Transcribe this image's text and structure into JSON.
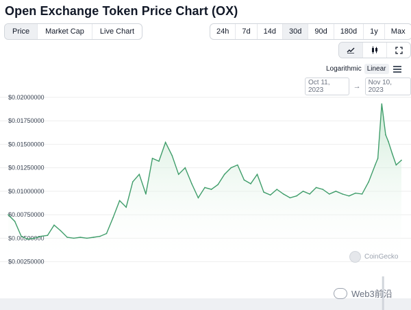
{
  "title": "Open Exchange Token Price Chart (OX)",
  "metric_tabs": [
    "Price",
    "Market Cap",
    "Live Chart"
  ],
  "active_metric": "Price",
  "range_tabs": [
    "24h",
    "7d",
    "14d",
    "30d",
    "90d",
    "180d",
    "1y",
    "Max"
  ],
  "active_range": "30d",
  "view_icons": [
    "line-chart-icon",
    "candlestick-icon",
    "fullscreen-icon"
  ],
  "scale": {
    "log_label": "Logarithmic",
    "linear_label": "Linear",
    "active": "Linear"
  },
  "date_range": {
    "from": "Oct 11, 2023",
    "to": "Nov 10, 2023"
  },
  "watermark": "CoinGecko",
  "source_watermark": "Web3前沿",
  "colors": {
    "line": "#3f9d6a",
    "fill_top": "#b9e2c5",
    "grid": "#eeeeee",
    "volume": "#d1d5db"
  },
  "chart_data": {
    "type": "area",
    "ylim": [
      0.00225,
      0.0205
    ],
    "y_ticks": [
      "$0.02000000",
      "$0.01750000",
      "$0.01500000",
      "$0.01250000",
      "$0.01000000",
      "$0.00750000",
      "$0.00500000",
      "$0.00250000"
    ],
    "y_tick_values": [
      0.02,
      0.0175,
      0.015,
      0.0125,
      0.01,
      0.0075,
      0.005,
      0.0025
    ],
    "x_range": [
      "Oct 11, 2023",
      "Nov 10, 2023"
    ],
    "series": [
      {
        "x_days": [
          0,
          0.5,
          1,
          1.5,
          2,
          2.5,
          3,
          3.5,
          4,
          4.5,
          5,
          5.5,
          6,
          6.5,
          7,
          7.5,
          8,
          8.5,
          9,
          9.5,
          10,
          10.5,
          11,
          11.5,
          12,
          12.5,
          13,
          13.5,
          14,
          14.5,
          15,
          15.5,
          16,
          16.5,
          17,
          17.5,
          18,
          18.5,
          19,
          19.5,
          20,
          20.5,
          21,
          21.5,
          22,
          22.5,
          23,
          23.5,
          24,
          24.5,
          25,
          25.5,
          26,
          26.5,
          27,
          27.5,
          28,
          28.2,
          28.5,
          28.8,
          29,
          29.3,
          29.6,
          30
        ],
        "values": [
          0.0075,
          0.0068,
          0.0052,
          0.0049,
          0.005,
          0.0052,
          0.0053,
          0.0064,
          0.0058,
          0.0051,
          0.005,
          0.0051,
          0.005,
          0.0051,
          0.0052,
          0.0055,
          0.0072,
          0.009,
          0.0083,
          0.011,
          0.0118,
          0.0097,
          0.0135,
          0.0132,
          0.0152,
          0.0138,
          0.0118,
          0.0125,
          0.0108,
          0.0093,
          0.0104,
          0.0102,
          0.0107,
          0.0118,
          0.0125,
          0.0128,
          0.0112,
          0.0108,
          0.0118,
          0.0099,
          0.0096,
          0.0102,
          0.0097,
          0.0093,
          0.0095,
          0.01,
          0.0097,
          0.0104,
          0.0102,
          0.0097,
          0.01,
          0.0097,
          0.0095,
          0.0098,
          0.0097,
          0.011,
          0.0128,
          0.0135,
          0.0193,
          0.016,
          0.0153,
          0.014,
          0.0128,
          0.0133
        ]
      }
    ]
  }
}
